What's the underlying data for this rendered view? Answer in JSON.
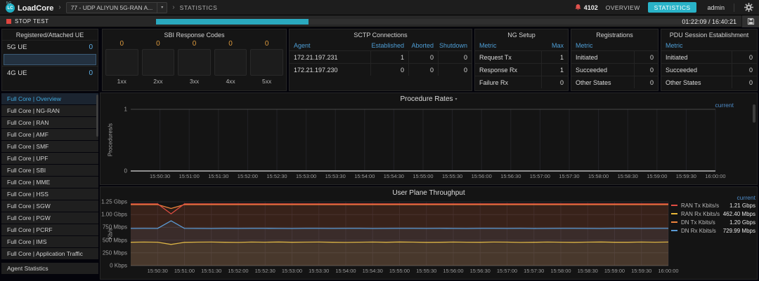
{
  "topbar": {
    "logo_text": "LoadCore",
    "logo_badge": "5G",
    "logo_icon": "LC",
    "test_selector": "77 - UDP ALIYUN 5G-RAN A...",
    "breadcrumb_section": "STATISTICS",
    "alert_count": "4102",
    "nav_overview": "OVERVIEW",
    "nav_statistics": "STATISTICS",
    "user": "admin",
    "accent_color": "#29b3c8"
  },
  "controlbar": {
    "stop_label": "STOP TEST",
    "elapsed": "01:22:09 / 16:40:21",
    "progress_pct": 27.5
  },
  "ue_panel": {
    "title": "Registered/Attached UE",
    "rows": [
      {
        "label": "5G UE",
        "value": "0"
      },
      {
        "label": "4G UE",
        "value": "0"
      }
    ],
    "value_color": "#5fb0e8"
  },
  "sbi_panel": {
    "title": "SBI Response Codes",
    "gauges": [
      {
        "label": "1xx",
        "value": "0"
      },
      {
        "label": "2xx",
        "value": "0"
      },
      {
        "label": "3xx",
        "value": "0"
      },
      {
        "label": "4xx",
        "value": "0"
      },
      {
        "label": "5xx",
        "value": "0"
      }
    ],
    "value_color": "#dd9a3e"
  },
  "sctp_panel": {
    "title": "SCTP Connections",
    "columns": [
      "Agent",
      "Established",
      "Aborted",
      "Shutdown"
    ],
    "rows": [
      [
        "172.21.197.231",
        "1",
        "0",
        "0"
      ],
      [
        "172.21.197.230",
        "0",
        "0",
        "0"
      ]
    ]
  },
  "ng_setup_panel": {
    "title": "NG Setup",
    "columns": [
      "Metric",
      "Max"
    ],
    "rows": [
      [
        "Request Tx",
        "1"
      ],
      [
        "Response Rx",
        "1"
      ],
      [
        "Failure Rx",
        "0"
      ]
    ]
  },
  "registrations_panel": {
    "title": "Registrations",
    "columns": [
      "Metric",
      ""
    ],
    "rows": [
      [
        "Initiated",
        "0"
      ],
      [
        "Succeeded",
        "0"
      ],
      [
        "Other States",
        "0"
      ]
    ]
  },
  "pdu_panel": {
    "title": "PDU Session Establishment",
    "columns": [
      "Metric",
      ""
    ],
    "rows": [
      [
        "Initiated",
        "0"
      ],
      [
        "Succeeded",
        "0"
      ],
      [
        "Other States",
        "0"
      ]
    ]
  },
  "sidebar": {
    "selected_index": 0,
    "items": [
      "Full Core | Overview",
      "Full Core | NG-RAN",
      "Full Core | RAN",
      "Full Core | AMF",
      "Full Core | SMF",
      "Full Core | UPF",
      "Full Core | SBI",
      "Full Core | MME",
      "Full Core | HSS",
      "Full Core | SGW",
      "Full Core | PGW",
      "Full Core | PCRF",
      "Full Core | IMS",
      "Full Core | Application Traffic"
    ],
    "footer_item": "Agent Statistics"
  },
  "chart_data": [
    {
      "type": "line",
      "title": "Procedure Rates",
      "ylabel": "Procedures/s",
      "ylim": [
        0,
        1
      ],
      "grid": true,
      "legend_header": "current",
      "legend_position": "top-right",
      "yticks": [
        {
          "value": 1,
          "label": "1",
          "bright": true
        },
        {
          "value": 0,
          "label": "0"
        }
      ],
      "x_ticklabels": [
        "15:50:30",
        "15:51:00",
        "15:51:30",
        "15:52:00",
        "15:52:30",
        "15:53:00",
        "15:53:30",
        "15:54:00",
        "15:54:30",
        "15:55:00",
        "15:55:30",
        "15:56:00",
        "15:56:30",
        "15:57:00",
        "15:57:30",
        "15:58:00",
        "15:58:30",
        "15:59:00",
        "15:59:30",
        "16:00:00"
      ],
      "series": [
        {
          "name": "current",
          "color": "#d9d9d9",
          "values": [
            0,
            0
          ]
        }
      ]
    },
    {
      "type": "area",
      "title": "User Plane Throughput",
      "ylabel": "Kb/s",
      "unit": "Mbps",
      "ylim": [
        0,
        1250
      ],
      "grid": true,
      "legend_header": "current",
      "legend_position": "right",
      "draw_order": [
        2,
        0,
        1,
        3
      ],
      "fill_opacity": 0.09,
      "yticks": [
        {
          "value": 1250,
          "label": "1.25 Gbps"
        },
        {
          "value": 1000,
          "label": "1.00 Gbps"
        },
        {
          "value": 750,
          "label": "750 Mbps"
        },
        {
          "value": 500,
          "label": "500 Mbps"
        },
        {
          "value": 250,
          "label": "250 Mbps"
        },
        {
          "value": 0,
          "label": "0 Kbps"
        }
      ],
      "x_ticklabels": [
        "15:50:30",
        "15:51:00",
        "15:51:30",
        "15:52:00",
        "15:52:30",
        "15:53:00",
        "15:53:30",
        "15:54:00",
        "15:54:30",
        "15:55:00",
        "15:55:30",
        "15:56:00",
        "15:56:30",
        "15:57:00",
        "15:57:30",
        "15:58:00",
        "15:58:30",
        "15:59:00",
        "15:59:30",
        "16:00:00"
      ],
      "series": [
        {
          "name": "RAN Tx Kbits/s",
          "color": "#e24d42",
          "current": "1.21 Gbps",
          "values": [
            1210,
            1210,
            1210,
            1015,
            1210,
            1210,
            1210,
            1210,
            1210,
            1210,
            1210,
            1210,
            1210,
            1210,
            1210,
            1210,
            1210,
            1210,
            1210,
            1210,
            1210,
            1210,
            1210,
            1210,
            1210,
            1210,
            1210,
            1210,
            1210,
            1210,
            1210,
            1210,
            1210,
            1210,
            1210,
            1210,
            1210,
            1210,
            1210,
            1210,
            1210
          ]
        },
        {
          "name": "RAN Rx Kbits/s",
          "color": "#eab839",
          "current": "462.40 Mbps",
          "values": [
            458,
            461,
            459,
            415,
            456,
            460,
            462,
            458,
            455,
            461,
            459,
            463,
            457,
            460,
            462,
            458,
            455,
            459,
            461,
            457,
            463,
            460,
            456,
            458,
            462,
            459,
            457,
            461,
            460,
            455,
            458,
            462,
            459,
            456,
            460,
            463,
            458,
            457,
            461,
            459,
            462
          ]
        },
        {
          "name": "DN Tx Kbits/s",
          "color": "#ef843c",
          "current": "1.20 Gbps",
          "values": [
            1195,
            1195,
            1195,
            1120,
            1195,
            1195,
            1195,
            1195,
            1195,
            1195,
            1195,
            1195,
            1195,
            1195,
            1195,
            1195,
            1195,
            1195,
            1195,
            1195,
            1195,
            1195,
            1195,
            1195,
            1195,
            1195,
            1195,
            1195,
            1195,
            1195,
            1195,
            1195,
            1195,
            1195,
            1195,
            1195,
            1195,
            1195,
            1195,
            1195,
            1195
          ]
        },
        {
          "name": "DN Rx Kbits/s",
          "color": "#5b9bd5",
          "current": "729.99 Mbps",
          "values": [
            728,
            729,
            728,
            878,
            730,
            728,
            727,
            729,
            728,
            730,
            729,
            728,
            727,
            730,
            729,
            728,
            730,
            729,
            727,
            728,
            730,
            729,
            728,
            730,
            728,
            727,
            729,
            730,
            728,
            729,
            727,
            728,
            730,
            729,
            728,
            727,
            730,
            729,
            728,
            729,
            730
          ]
        }
      ]
    }
  ]
}
